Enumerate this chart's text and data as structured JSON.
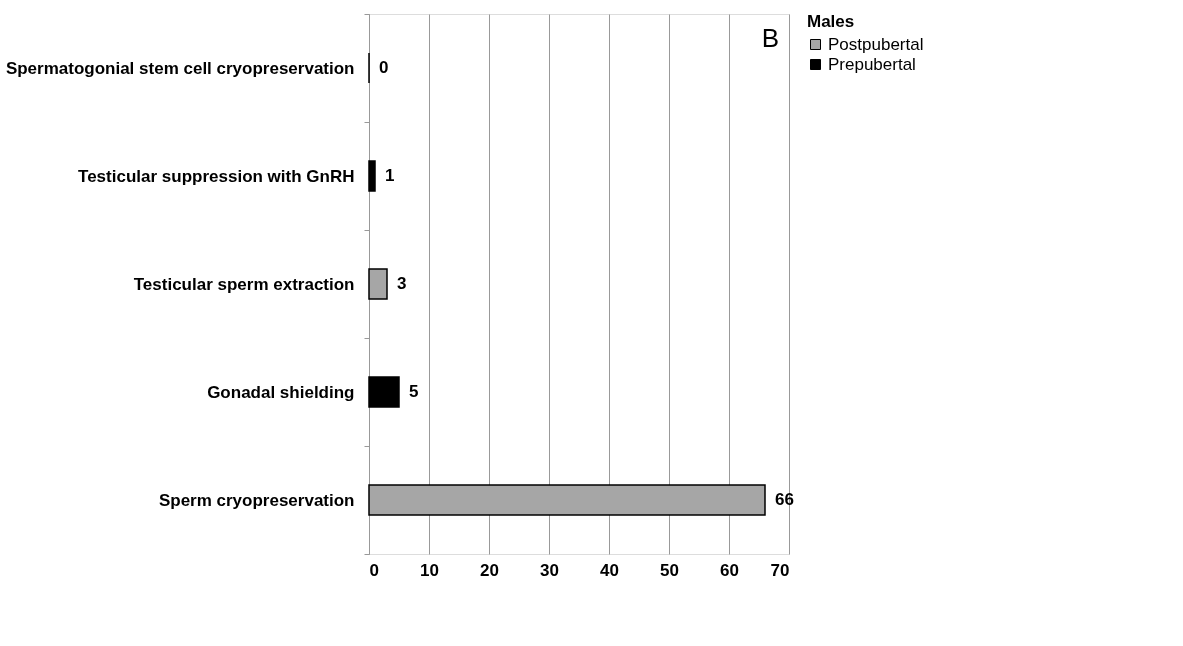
{
  "chart_data": {
    "type": "bar",
    "orientation": "horizontal",
    "categories": [
      "Spermatogonial stem cell cryopreservation",
      "Testicular suppression with GnRH",
      "Testicular sperm extraction",
      "Gonadal shielding",
      "Sperm cryopreservation"
    ],
    "series": [
      {
        "name": "Postpubertal",
        "color": "#a6a6a6",
        "values": [
          null,
          null,
          3,
          null,
          66
        ]
      },
      {
        "name": "Prepubertal",
        "color": "#000000",
        "values": [
          0,
          1,
          null,
          5,
          null
        ]
      }
    ],
    "xlim": [
      0,
      70
    ],
    "xticks": [
      0,
      10,
      20,
      30,
      40,
      50,
      60,
      70
    ],
    "grid": "x",
    "legend": "right",
    "legend_title": "Males",
    "data_labels": true,
    "annotations": [
      "B"
    ]
  }
}
